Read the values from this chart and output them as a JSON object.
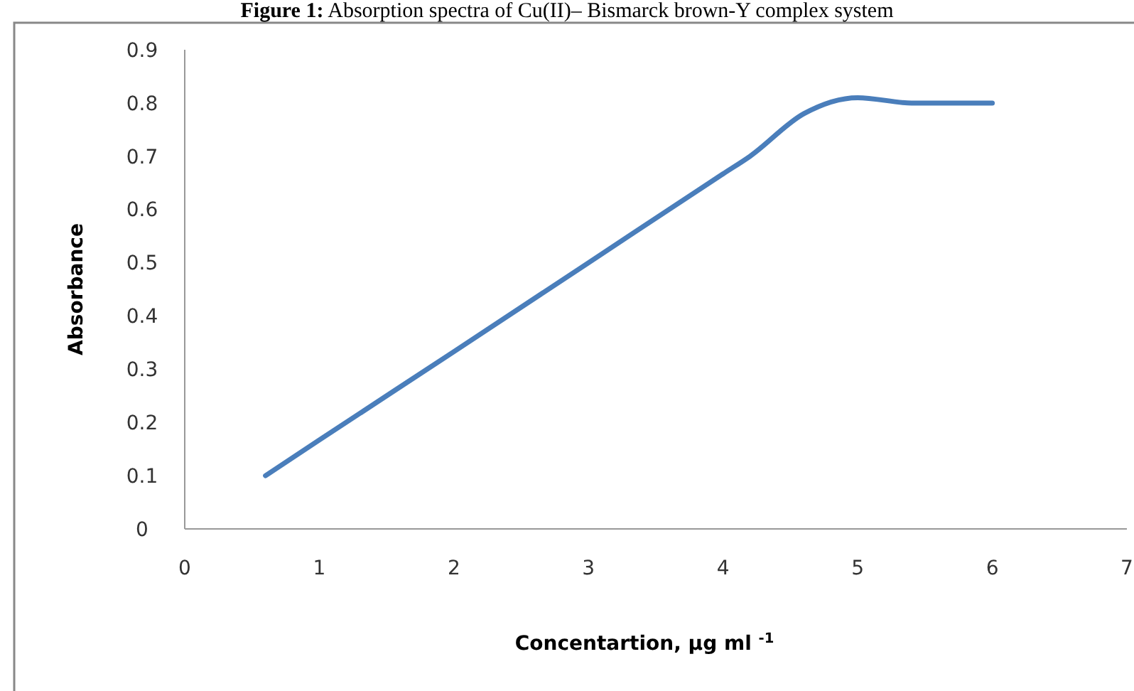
{
  "chart_data": {
    "type": "line",
    "title": "Figure 1: Absorption spectra of Cu(II)– Bismarck brown-Y complex system",
    "xlabel": "Concentartion, µg ml $^{-1}$",
    "ylabel": "Absorbance",
    "x": [
      0.6,
      1,
      2,
      3,
      4,
      4.2,
      4.6,
      5,
      5.4,
      6
    ],
    "series": [
      {
        "color": "#4a7ebb",
        "values": [
          0.1,
          0.167,
          0.333,
          0.5,
          0.667,
          0.7,
          0.78,
          0.81,
          0.8,
          0.8
        ]
      }
    ],
    "xlim": [
      0,
      7
    ],
    "xticks": [
      0,
      1,
      2,
      3,
      4,
      5,
      6,
      7
    ],
    "ylim": [
      0,
      0.9
    ],
    "yticks": [
      0,
      0.1,
      0.2,
      0.3,
      0.4,
      0.5,
      0.6,
      0.7,
      0.8,
      0.9
    ],
    "grid": false,
    "marker": "none",
    "line_style": "solid"
  }
}
